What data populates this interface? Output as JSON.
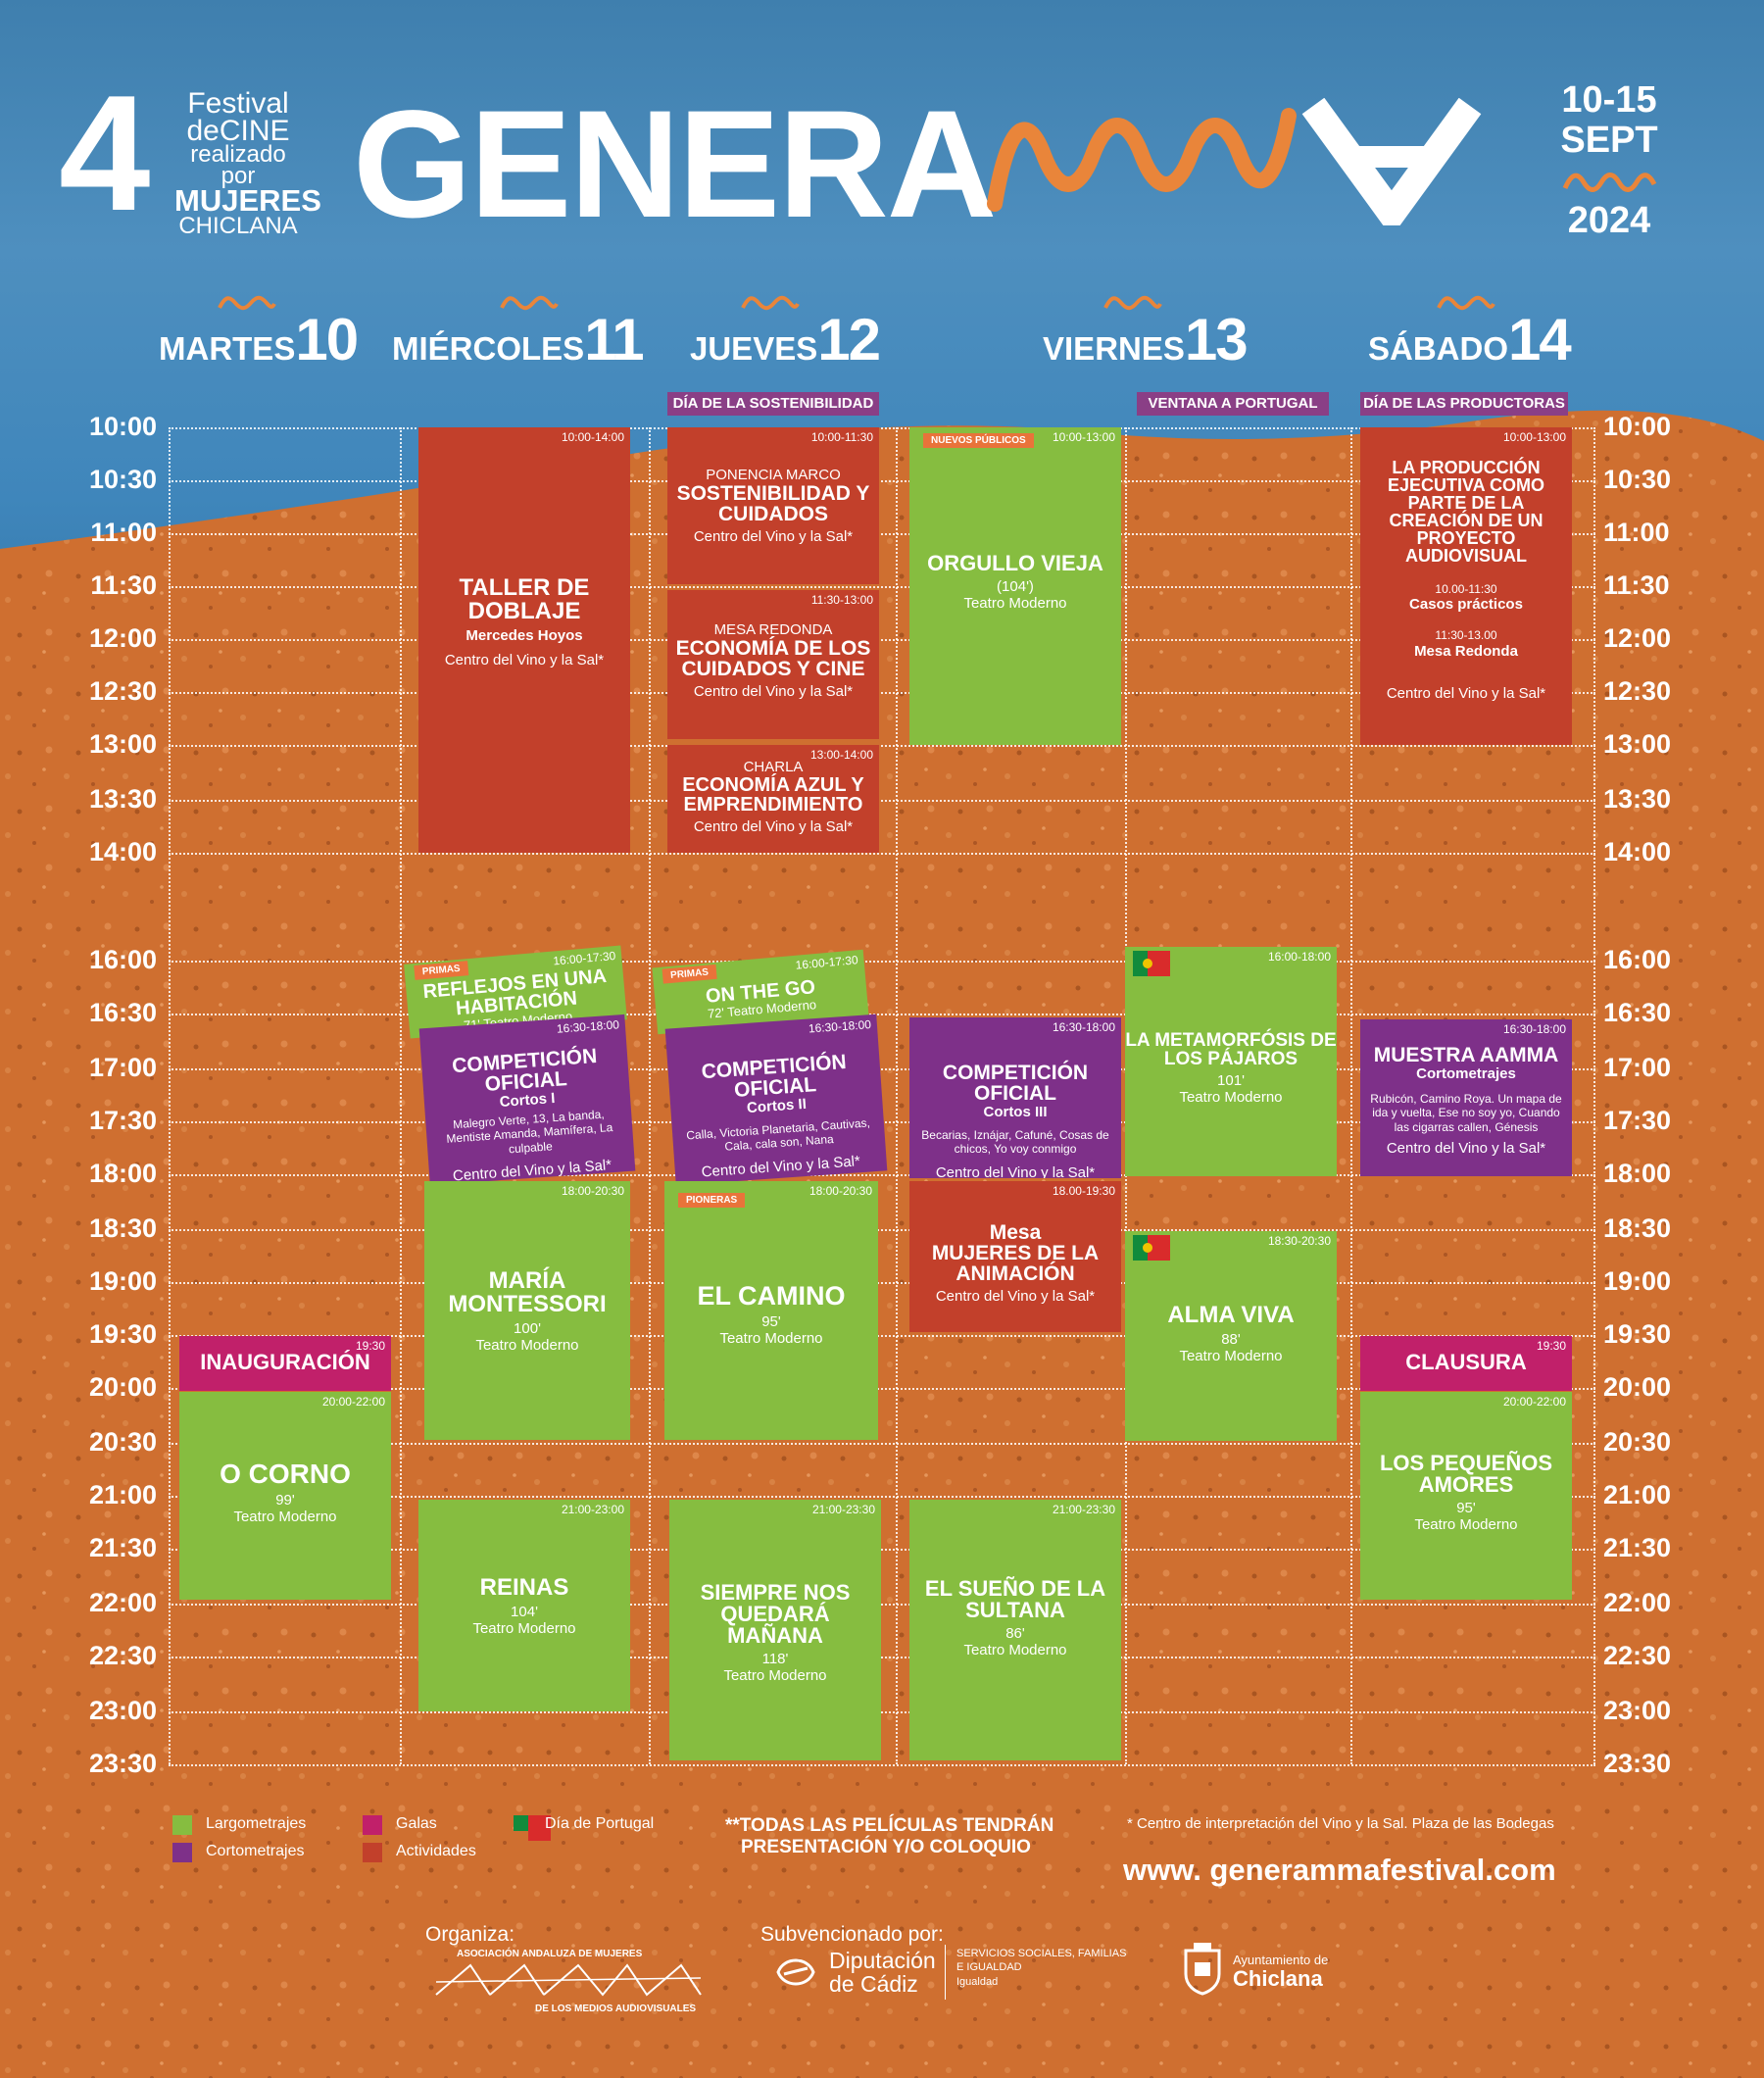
{
  "header": {
    "edition": "4",
    "festival_lines": [
      "Festival",
      "deCINE",
      "realizado por",
      "MUJERES",
      "CHICLANA"
    ],
    "title": "GENERA",
    "dates_line1": "10-15",
    "dates_line2": "SEPT",
    "year": "2024"
  },
  "days": [
    {
      "name": "MARTES",
      "num": "10"
    },
    {
      "name": "MIÉRCOLES",
      "num": "11"
    },
    {
      "name": "JUEVES",
      "num": "12"
    },
    {
      "name": "VIERNES",
      "num": "13"
    },
    {
      "name": "SÁBADO",
      "num": "14"
    }
  ],
  "day_tags": {
    "jueves": "DÍA DE LA SOSTENIBILIDAD",
    "viernes": "VENTANA A PORTUGAL",
    "sabado": "DÍA DE LAS PRODUCTORAS"
  },
  "times": [
    "10:00",
    "10:30",
    "11:00",
    "11:30",
    "12:00",
    "12:30",
    "13:00",
    "13:30",
    "14:00",
    "16:00",
    "16:30",
    "17:00",
    "17:30",
    "18:00",
    "18:30",
    "19:00",
    "19:30",
    "20:00",
    "20:30",
    "21:00",
    "21:30",
    "22:00",
    "22:30",
    "23:00",
    "23:30"
  ],
  "events": {
    "taller": {
      "time": "10:00-14:00",
      "title": "TALLER DE DOBLAJE",
      "sub": "Mercedes Hoyos",
      "place": "Centro del Vino y la Sal*"
    },
    "sostenibilidad": {
      "time": "10:00-11:30",
      "kind": "PONENCIA MARCO",
      "title": "SOSTENIBILIDAD Y CUIDADOS",
      "place": "Centro del Vino y la Sal*"
    },
    "economia_cuidados": {
      "time": "11:30-13:00",
      "kind": "MESA REDONDA",
      "title": "ECONOMÍA DE LOS CUIDADOS Y CINE",
      "place": "Centro del Vino y la Sal*"
    },
    "economia_azul": {
      "time": "13:00-14:00",
      "kind": "CHARLA",
      "title": "ECONOMÍA AZUL Y EMPRENDIMIENTO",
      "place": "Centro del Vino y la Sal*"
    },
    "orgullo": {
      "badge": "NUEVOS PÚBLICOS",
      "time": "10:00-13:00",
      "title": "ORGULLO VIEJA",
      "dur": "(104')",
      "place": "Teatro Moderno"
    },
    "produccion": {
      "time": "10:00-13:00",
      "title": "LA PRODUCCIÓN EJECUTIVA COMO PARTE DE LA CREACIÓN DE UN PROYECTO AUDIOVISUAL",
      "time2": "10.00-11:30",
      "sub2": "Casos prácticos",
      "time3": "11:30-13.00",
      "sub3": "Mesa Redonda",
      "place": "Centro del Vino y la Sal*"
    },
    "reflejos": {
      "badge": "PRIMAS",
      "time": "16:00-17:30",
      "title": "REFLEJOS EN UNA HABITACIÓN",
      "place": "71' Teatro Moderno"
    },
    "onthego": {
      "badge": "PRIMAS",
      "time": "16:00-17:30",
      "title": "ON THE GO",
      "place": "72' Teatro Moderno"
    },
    "metamorfosis": {
      "time": "16:00-18:00",
      "title": "LA METAMORFÓSIS DE LOS PÁJAROS",
      "dur": "101'",
      "place": "Teatro Moderno"
    },
    "comp1": {
      "time": "16:30-18:00",
      "title": "COMPETICIÓN OFICIAL",
      "sub": "Cortos I",
      "films": "Malegro Verte, 13, La banda, Mentiste Amanda, Mamífera, La culpable",
      "place": "Centro del Vino y la Sal*"
    },
    "comp2": {
      "time": "16:30-18:00",
      "title": "COMPETICIÓN OFICIAL",
      "sub": "Cortos II",
      "films": "Calla, Victoria Planetaria, Cautivas, Cala, cala son, Nana",
      "place": "Centro del Vino y la Sal*"
    },
    "comp3": {
      "time": "16:30-18:00",
      "title": "COMPETICIÓN OFICIAL",
      "sub": "Cortos III",
      "films": "Becarias, Iznájar, Cafuné, Cosas de chicos, Yo voy conmigo",
      "place": "Centro del Vino y la Sal*"
    },
    "muestra": {
      "time": "16:30-18:00",
      "title": "MUESTRA AAMMA",
      "sub": "Cortometrajes",
      "films": "Rubicón, Camino Roya. Un mapa de ida y vuelta, Ese no soy yo, Cuando las cigarras callen, Génesis",
      "place": "Centro del Vino y la Sal*"
    },
    "montessori": {
      "time": "18:00-20:30",
      "title": "MARÍA MONTESSORI",
      "dur": "100'",
      "place": "Teatro Moderno"
    },
    "camino": {
      "badge": "PIONERAS",
      "time": "18:00-20:30",
      "title": "EL CAMINO",
      "dur": "95'",
      "place": "Teatro Moderno"
    },
    "animacion": {
      "time": "18.00-19:30",
      "kind": "Mesa",
      "title": "MUJERES DE LA ANIMACIÓN",
      "place": "Centro del Vino y la Sal*"
    },
    "almaviva": {
      "time": "18:30-20:30",
      "title": "ALMA VIVA",
      "dur": "88'",
      "place": "Teatro Moderno"
    },
    "inauguracion": {
      "time": "19:30",
      "title": "INAUGURACIÓN"
    },
    "clausura": {
      "time": "19:30",
      "title": "CLAUSURA"
    },
    "corno": {
      "time": "20:00-22:00",
      "title": "O CORNO",
      "dur": "99'",
      "place": "Teatro Moderno"
    },
    "pequenos": {
      "time": "20:00-22:00",
      "title": "LOS PEQUEÑOS AMORES",
      "dur": "95'",
      "place": "Teatro Moderno"
    },
    "reinas": {
      "time": "21:00-23:00",
      "title": "REINAS",
      "dur": "104'",
      "place": "Teatro Moderno"
    },
    "siempre": {
      "time": "21:00-23:30",
      "title": "SIEMPRE NOS QUEDARÁ MAÑANA",
      "dur": "118'",
      "place": "Teatro Moderno"
    },
    "sultana": {
      "time": "21:00-23:30",
      "title": "EL SUEÑO DE LA SULTANA",
      "dur": "86'",
      "place": "Teatro Moderno"
    }
  },
  "legend": {
    "largo": "Largometrajes",
    "corto": "Cortometrajes",
    "galas": "Galas",
    "actividades": "Actividades",
    "portugal": "Día de Portugal",
    "note1": "**TODAS LAS PELÍCULAS TENDRÁN",
    "note2": "PRESENTACIÓN Y/O COLOQUIO",
    "venue_note": "* Centro de interpretación del Vino y la Sal. Plaza de las Bodegas",
    "website": "www. generammafestival.com",
    "colors": {
      "largo": "#86bd40",
      "corto": "#7e3089",
      "galas": "#c1206a",
      "actividades": "#c2402b",
      "accent": "#e9853a"
    }
  },
  "footer": {
    "organiza": "Organiza:",
    "org_top": "ASOCIACIÓN ANDALUZA DE MUJERES",
    "org_bottom": "DE LOS MEDIOS AUDIOVISUALES",
    "subv": "Subvencionado por:",
    "dip1": "Diputación",
    "dip2": "de Cádiz",
    "dip_s1": "SERVICIOS SOCIALES, FAMILIAS",
    "dip_s2": "E IGUALDAD",
    "dip_s3": "Igualdad",
    "ayto1": "Ayuntamiento de",
    "ayto2": "Chiclana"
  }
}
